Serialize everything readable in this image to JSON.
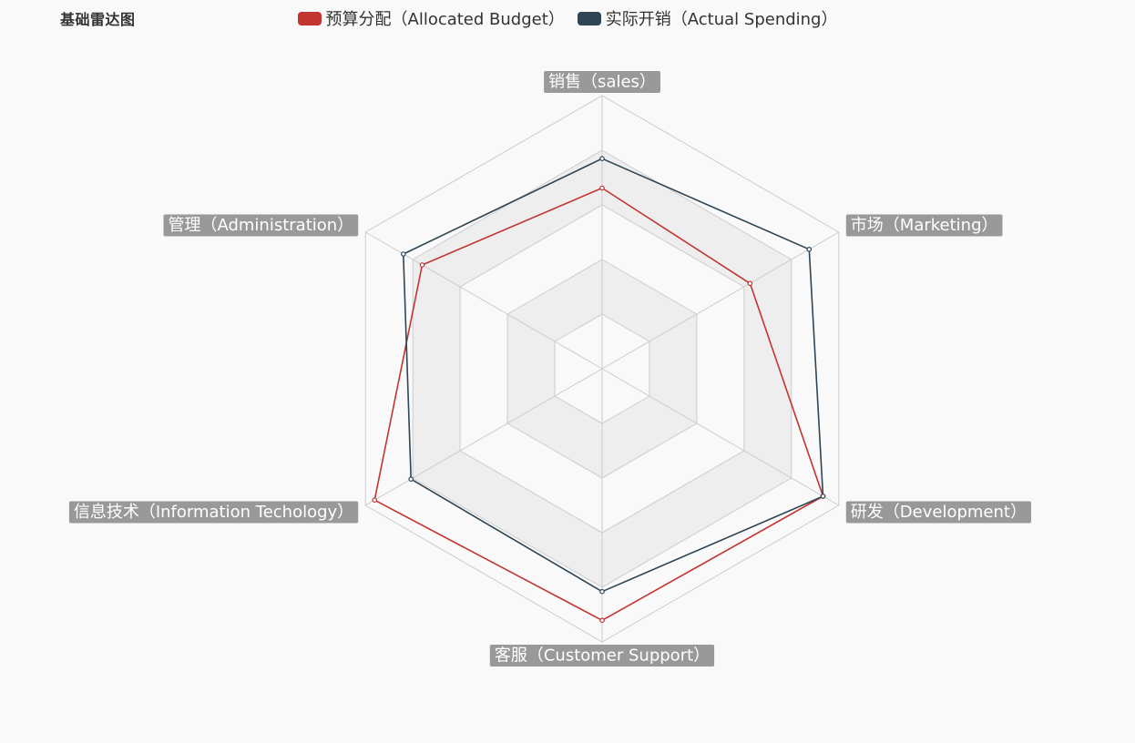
{
  "chart_data": {
    "type": "radar",
    "title": "基础雷达图",
    "indicators": [
      {
        "name": "销售（sales）",
        "max": 6500
      },
      {
        "name": "市场（Marketing）",
        "max": 16000
      },
      {
        "name": "研发（Development）",
        "max": 30000
      },
      {
        "name": "客服（Customer Support）",
        "max": 38000
      },
      {
        "name": "信息技术（Information Techology）",
        "max": 52000
      },
      {
        "name": "管理（Administration）",
        "max": 25000
      }
    ],
    "series": [
      {
        "name": "预算分配（Allocated Budget）",
        "color": "#c23531",
        "values": [
          4300,
          10000,
          28000,
          35000,
          50000,
          19000
        ]
      },
      {
        "name": "实际开销（Actual Spending）",
        "color": "#2f4554",
        "values": [
          5000,
          14000,
          28000,
          31000,
          42000,
          21000
        ]
      }
    ],
    "split_number": 5,
    "legend_position": "top-center",
    "colors": {
      "background": "#f9f9f9",
      "split_line": "#cccccc",
      "split_area_light": "#f9f9f9",
      "split_area_dark": "#eeeeee",
      "label_background": "#999999",
      "label_text": "#ffffff"
    }
  }
}
